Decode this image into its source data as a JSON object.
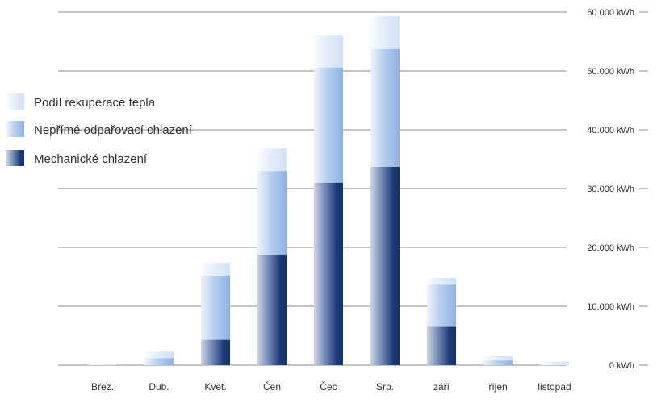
{
  "chart_data": {
    "type": "bar",
    "stacked": true,
    "categories": [
      "Břez.",
      "Dub.",
      "Květ.",
      "Čen",
      "Čec",
      "Srp.",
      "září",
      "říjen",
      "listopad"
    ],
    "series": [
      {
        "name": "Mechanické chlazení",
        "values": [
          0,
          0,
          4300,
          18800,
          31000,
          33700,
          6500,
          0,
          0
        ],
        "color": "#1f3d78"
      },
      {
        "name": "Nepřímé odpařovací chlazení",
        "values": [
          0,
          1200,
          10900,
          14200,
          19600,
          20000,
          7300,
          800,
          0
        ],
        "color": "#9fbde8"
      },
      {
        "name": "Podíl rekuperace tepla",
        "values": [
          200,
          1100,
          2200,
          3800,
          5400,
          5600,
          1000,
          700,
          600
        ],
        "color": "#d9e6f8"
      }
    ],
    "yticks": [
      "0 kWh",
      "10.000 kWh",
      "20.000 kWh",
      "30.000 kWh",
      "40.000 kWh",
      "50.000 kWh",
      "60.000 kWh"
    ],
    "ylim": [
      0,
      60000
    ],
    "grid": true,
    "legend_position": "left"
  }
}
